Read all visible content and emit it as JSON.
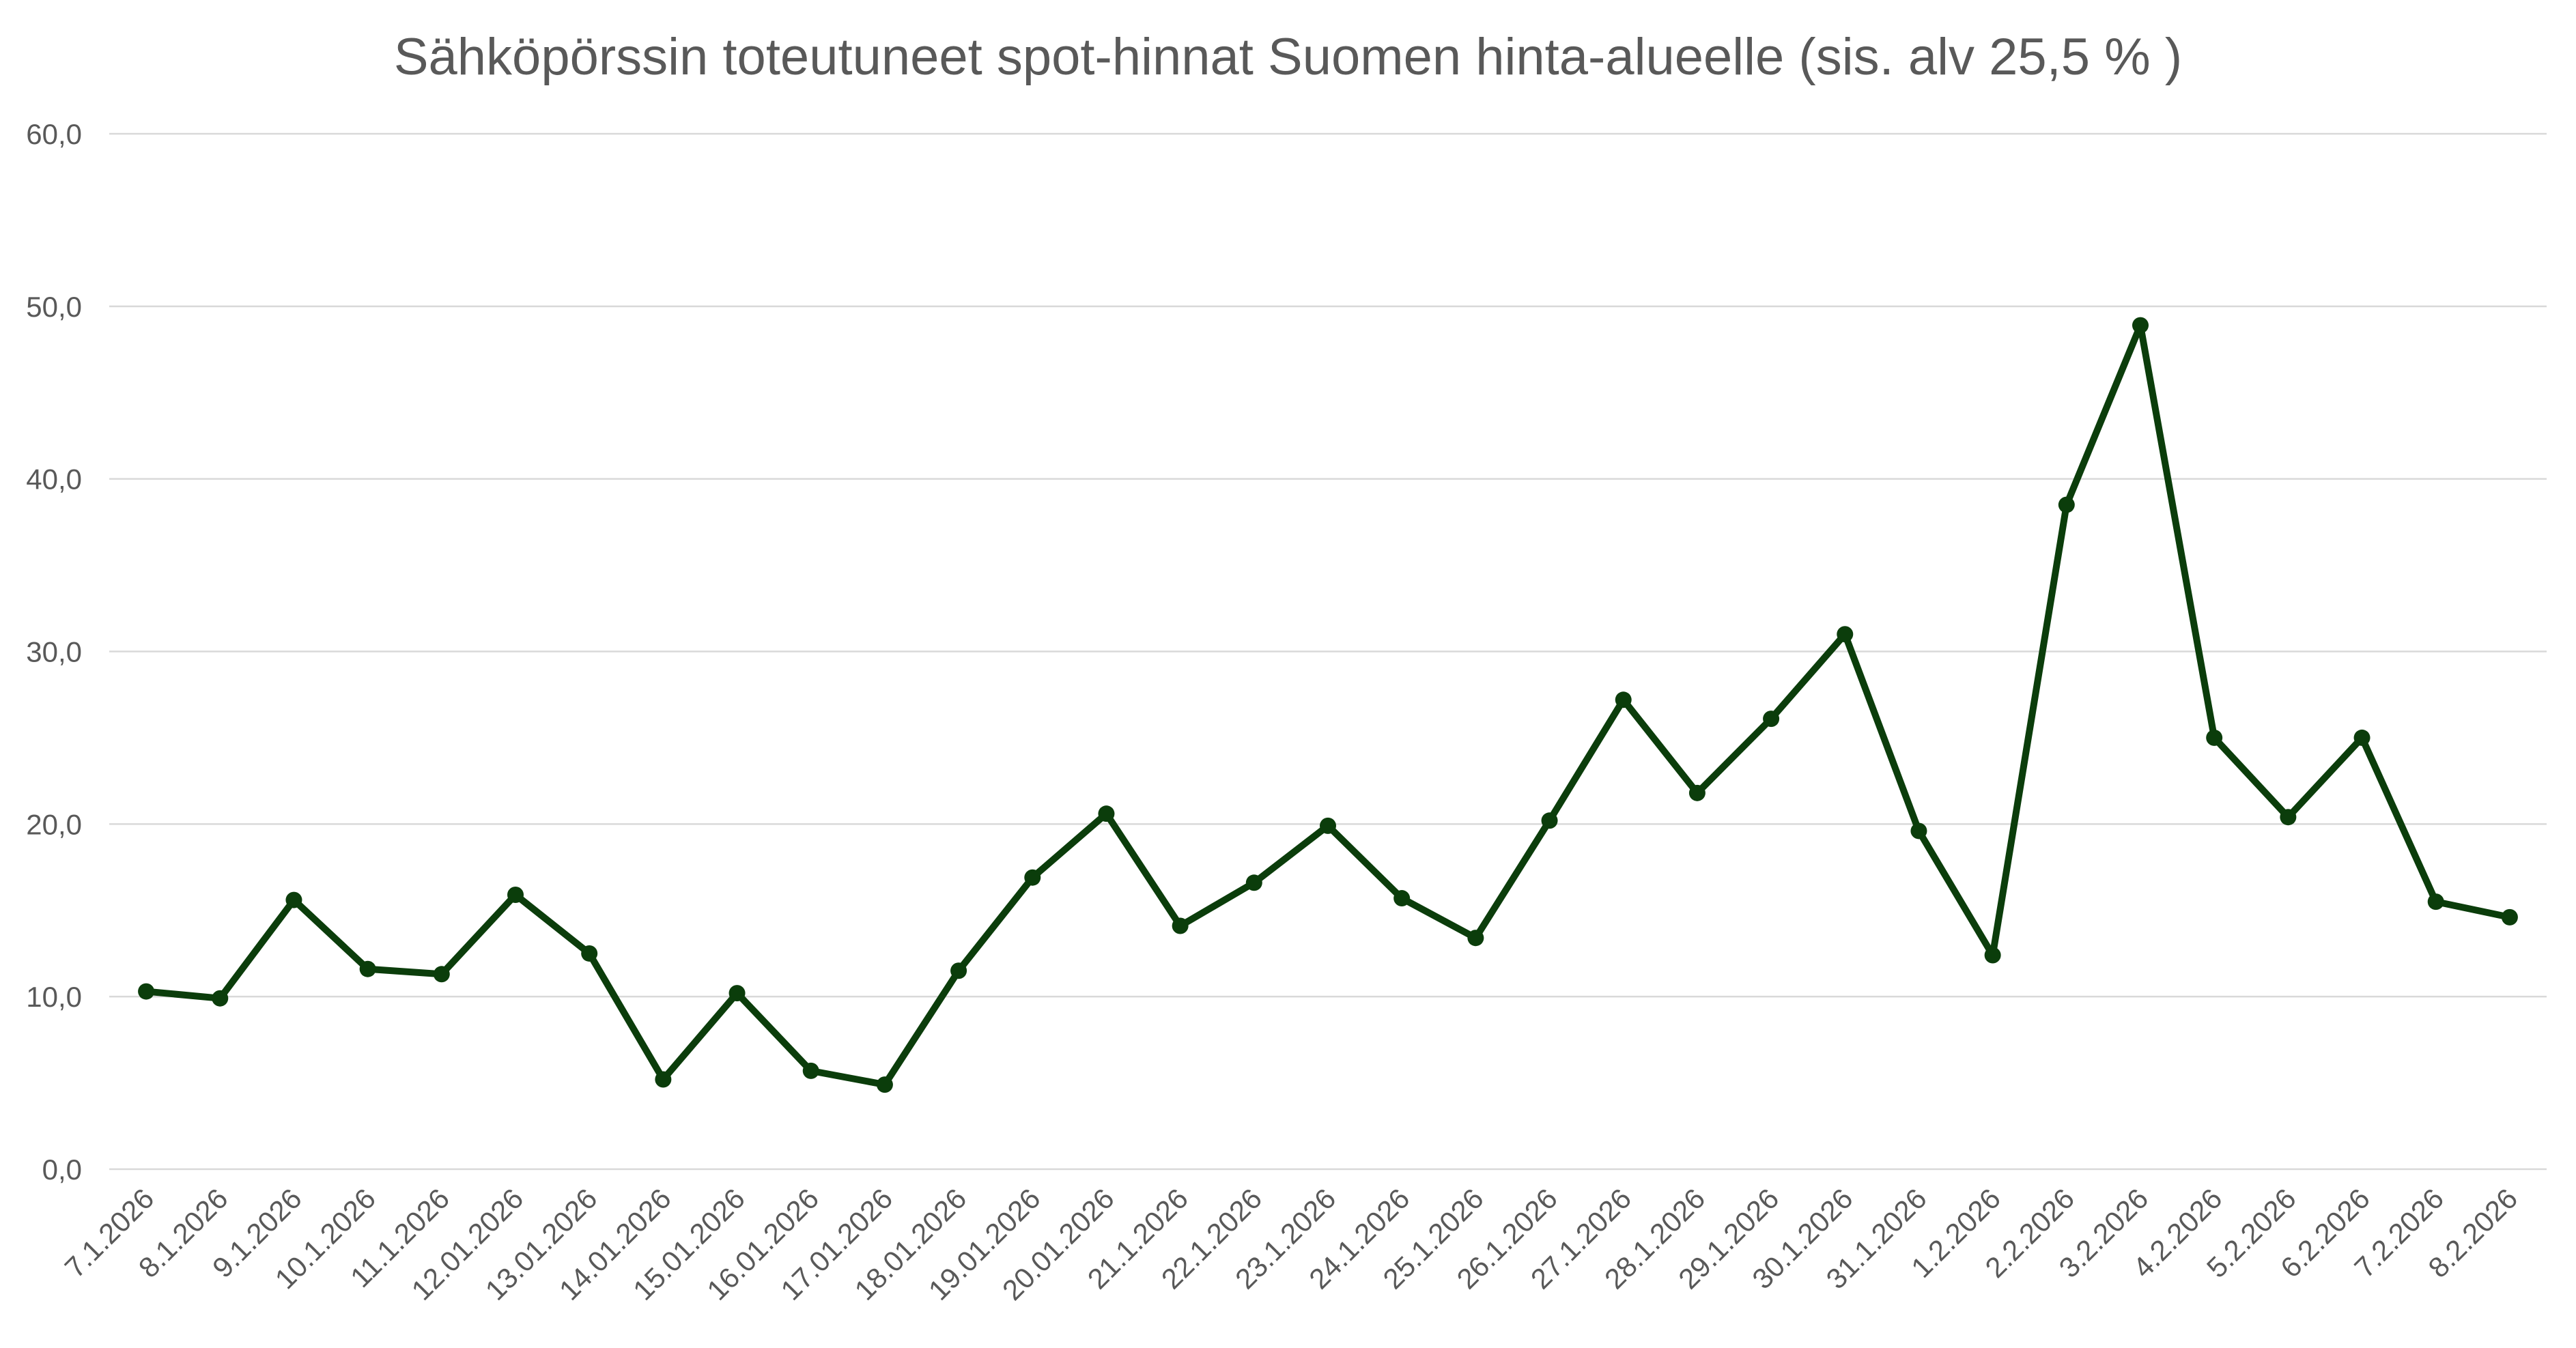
{
  "chart_data": {
    "type": "line",
    "title": "Sähköpörssin toteutuneet spot-hinnat Suomen hinta-alueelle (sis. alv 25,5 % )",
    "xlabel": "",
    "ylabel": "",
    "ylim": [
      0,
      60
    ],
    "yticks": [
      "0,0",
      "10,0",
      "20,0",
      "30,0",
      "40,0",
      "50,0",
      "60,0"
    ],
    "grid": true,
    "legend": "none",
    "color": "#0b3d0b",
    "categories": [
      "7.1.2026",
      "8.1.2026",
      "9.1.2026",
      "10.1.2026",
      "11.1.2026",
      "12.01.2026",
      "13.01.2026",
      "14.01.2026",
      "15.01.2026",
      "16.01.2026",
      "17.01.2026",
      "18.01.2026",
      "19.01.2026",
      "20.01.2026",
      "21.1.2026",
      "22.1.2026",
      "23.1.2026",
      "24.1.2026",
      "25.1.2026",
      "26.1.2026",
      "27.1.2026",
      "28.1.2026",
      "29.1.2026",
      "30.1.2026",
      "31.1.2026",
      "1.2.2026",
      "2.2.2026",
      "3.2.2026",
      "4.2.2026",
      "5.2.2026",
      "6.2.2026",
      "7.2.2026",
      "8.2.2026"
    ],
    "series": [
      {
        "values": [
          10.3,
          9.9,
          15.6,
          11.6,
          11.3,
          15.9,
          12.5,
          5.2,
          10.2,
          5.7,
          4.9,
          11.5,
          16.9,
          20.6,
          14.1,
          16.6,
          19.9,
          15.7,
          13.4,
          20.2,
          27.2,
          21.8,
          26.1,
          31.0,
          19.6,
          12.4,
          38.5,
          48.9,
          25.0,
          20.4,
          25.0,
          15.5,
          14.6
        ]
      }
    ]
  }
}
